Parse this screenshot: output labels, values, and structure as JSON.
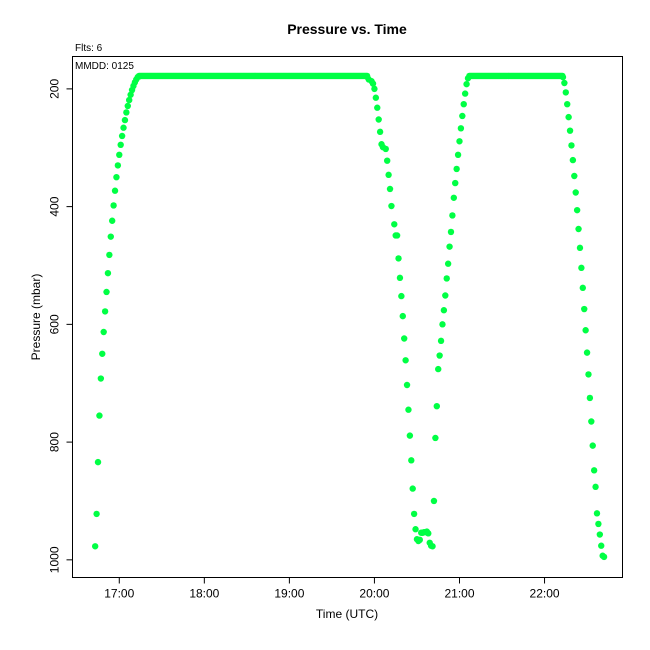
{
  "chart_data": {
    "type": "scatter",
    "title": "Pressure  vs. Time",
    "flights_label": "Flts: 6",
    "date_label": "MMDD: 0125",
    "xlabel": "Time (UTC)",
    "ylabel": "Pressure (mbar)",
    "x_ticks": [
      "17:00",
      "18:00",
      "19:00",
      "20:00",
      "21:00",
      "22:00"
    ],
    "y_ticks": [
      "200",
      "400",
      "600",
      "800",
      "1000"
    ],
    "xlim": [
      "16:27",
      "22:55"
    ],
    "ylim": [
      1030,
      145
    ],
    "y_inverted": true,
    "grid": false,
    "marker_color": "#00ff44",
    "points": [
      [
        "16:43",
        977
      ],
      [
        "16:44",
        922
      ],
      [
        "16:45",
        834
      ],
      [
        "16:46",
        755
      ],
      [
        "16:47",
        692
      ],
      [
        "16:48",
        650
      ],
      [
        "16:49",
        613
      ],
      [
        "16:50",
        578
      ],
      [
        "16:51",
        545
      ],
      [
        "16:52",
        513
      ],
      [
        "16:53",
        482
      ],
      [
        "16:54",
        451
      ],
      [
        "16:55",
        424
      ],
      [
        "16:56",
        398
      ],
      [
        "16:57",
        373
      ],
      [
        "16:58",
        350
      ],
      [
        "16:59",
        330
      ],
      [
        "17:00",
        312
      ],
      [
        "17:01",
        295
      ],
      [
        "17:02",
        280
      ],
      [
        "17:03",
        266
      ],
      [
        "17:04",
        253
      ],
      [
        "17:05",
        240
      ],
      [
        "17:06",
        229
      ],
      [
        "17:07",
        219
      ],
      [
        "17:08",
        210
      ],
      [
        "17:09",
        202
      ],
      [
        "17:10",
        195
      ],
      [
        "17:11",
        189
      ],
      [
        "17:12",
        184
      ],
      [
        "17:13",
        180
      ],
      [
        "17:14",
        179
      ],
      [
        "19:55",
        180
      ],
      [
        "19:56",
        184
      ],
      [
        "19:58",
        187
      ],
      [
        "19:59",
        191
      ],
      [
        "20:00",
        200
      ],
      [
        "20:01",
        215
      ],
      [
        "20:02",
        232
      ],
      [
        "20:03",
        252
      ],
      [
        "20:04",
        273
      ],
      [
        "20:05",
        294
      ],
      [
        "20:06",
        299
      ],
      [
        "20:08",
        302
      ],
      [
        "20:09",
        322
      ],
      [
        "20:10",
        346
      ],
      [
        "20:11",
        370
      ],
      [
        "20:12",
        399
      ],
      [
        "20:14",
        430
      ],
      [
        "20:15",
        449
      ],
      [
        "20:16",
        449
      ],
      [
        "20:17",
        488
      ],
      [
        "20:18",
        521
      ],
      [
        "20:19",
        552
      ],
      [
        "20:20",
        586
      ],
      [
        "20:21",
        624
      ],
      [
        "20:22",
        661
      ],
      [
        "20:23",
        703
      ],
      [
        "20:24",
        745
      ],
      [
        "20:25",
        789
      ],
      [
        "20:26",
        831
      ],
      [
        "20:27",
        879
      ],
      [
        "20:28",
        922
      ],
      [
        "20:29",
        948
      ],
      [
        "20:30",
        965
      ],
      [
        "20:31",
        968
      ],
      [
        "20:32",
        966
      ],
      [
        "20:33",
        954
      ],
      [
        "20:34",
        954
      ],
      [
        "20:35",
        953
      ],
      [
        "20:36",
        953
      ],
      [
        "20:37",
        952
      ],
      [
        "20:38",
        955
      ],
      [
        "20:39",
        971
      ],
      [
        "20:40",
        976
      ],
      [
        "20:41",
        977
      ],
      [
        "20:42",
        900
      ],
      [
        "20:43",
        793
      ],
      [
        "20:44",
        739
      ],
      [
        "20:45",
        676
      ],
      [
        "20:46",
        653
      ],
      [
        "20:47",
        628
      ],
      [
        "20:48",
        600
      ],
      [
        "20:49",
        576
      ],
      [
        "20:50",
        551
      ],
      [
        "20:51",
        522
      ],
      [
        "20:52",
        497
      ],
      [
        "20:53",
        468
      ],
      [
        "20:54",
        443
      ],
      [
        "20:55",
        415
      ],
      [
        "20:56",
        385
      ],
      [
        "20:57",
        360
      ],
      [
        "20:58",
        336
      ],
      [
        "20:59",
        312
      ],
      [
        "21:00",
        289
      ],
      [
        "21:01",
        267
      ],
      [
        "21:02",
        246
      ],
      [
        "21:03",
        226
      ],
      [
        "21:04",
        208
      ],
      [
        "21:05",
        192
      ],
      [
        "21:06",
        182
      ],
      [
        "21:07",
        179
      ],
      [
        "22:13",
        180
      ],
      [
        "22:14",
        190
      ],
      [
        "22:15",
        206
      ],
      [
        "22:16",
        226
      ],
      [
        "22:17",
        248
      ],
      [
        "22:18",
        271
      ],
      [
        "22:19",
        296
      ],
      [
        "22:20",
        321
      ],
      [
        "22:21",
        348
      ],
      [
        "22:22",
        376
      ],
      [
        "22:23",
        406
      ],
      [
        "22:24",
        438
      ],
      [
        "22:25",
        470
      ],
      [
        "22:26",
        504
      ],
      [
        "22:27",
        538
      ],
      [
        "22:28",
        574
      ],
      [
        "22:29",
        610
      ],
      [
        "22:30",
        648
      ],
      [
        "22:31",
        685
      ],
      [
        "22:32",
        725
      ],
      [
        "22:33",
        765
      ],
      [
        "22:34",
        806
      ],
      [
        "22:35",
        848
      ],
      [
        "22:36",
        876
      ],
      [
        "22:37",
        921
      ],
      [
        "22:38",
        939
      ],
      [
        "22:39",
        957
      ],
      [
        "22:40",
        976
      ],
      [
        "22:41",
        993
      ],
      [
        "22:42",
        995
      ]
    ],
    "plateaus": [
      {
        "from": "17:14",
        "to": "19:55",
        "value": 178
      },
      {
        "from": "21:07",
        "to": "22:13",
        "value": 178
      }
    ]
  }
}
